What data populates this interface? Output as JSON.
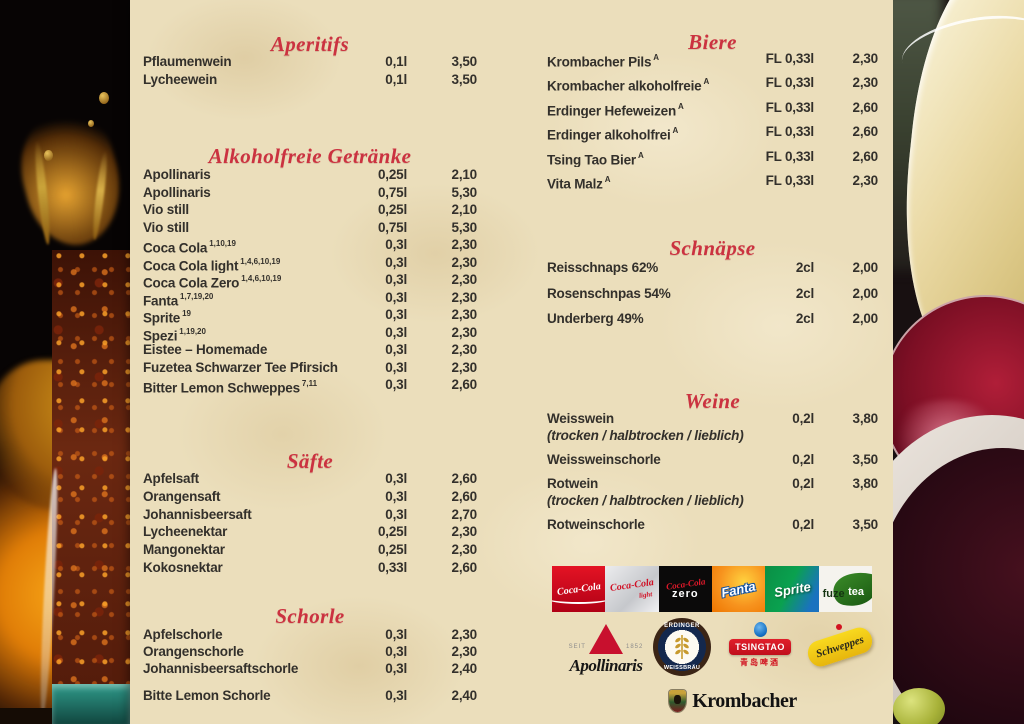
{
  "menu": {
    "columns": {
      "left": {
        "sections": [
          {
            "id": "aperitifs",
            "title": "Aperitifs",
            "items": [
              {
                "name": "Pflaumenwein",
                "vol": "0,1l",
                "price": "3,50"
              },
              {
                "name": "Lycheewein",
                "vol": "0,1l",
                "price": "3,50"
              }
            ]
          },
          {
            "id": "alkoholfreie-getraenke",
            "title": "Alkoholfreie Getränke",
            "items": [
              {
                "name": "Apollinaris",
                "vol": "0,25l",
                "price": "2,10"
              },
              {
                "name": "Apollinaris",
                "vol": "0,75l",
                "price": "5,30"
              },
              {
                "name": "Vio still",
                "vol": "0,25l",
                "price": "2,10"
              },
              {
                "name": "Vio still",
                "vol": "0,75l",
                "price": "5,30"
              },
              {
                "name": "Coca Cola",
                "sup": "1,10,19",
                "vol": "0,3l",
                "price": "2,30"
              },
              {
                "name": "Coca Cola light",
                "sup": "1,4,6,10,19",
                "vol": "0,3l",
                "price": "2,30"
              },
              {
                "name": "Coca Cola Zero",
                "sup": "1,4,6,10,19",
                "vol": "0,3l",
                "price": "2,30"
              },
              {
                "name": "Fanta",
                "sup": "1,7,19,20",
                "vol": "0,3l",
                "price": "2,30"
              },
              {
                "name": "Sprite",
                "sup": "19",
                "vol": "0,3l",
                "price": "2,30"
              },
              {
                "name": "Spezi",
                "sup": "1,19,20",
                "vol": "0,3l",
                "price": "2,30"
              },
              {
                "name": "Eistee – Homemade",
                "vol": "0,3l",
                "price": "2,30"
              },
              {
                "name": "Fuzetea Schwarzer Tee Pfirsich",
                "vol": "0,3l",
                "price": "2,30"
              },
              {
                "name": "Bitter Lemon Schweppes",
                "sup": "7,11",
                "vol": "0,3l",
                "price": "2,60"
              }
            ]
          },
          {
            "id": "saefte",
            "title": "Säfte",
            "items": [
              {
                "name": "Apfelsaft",
                "vol": "0,3l",
                "price": "2,60"
              },
              {
                "name": "Orangensaft",
                "vol": "0,3l",
                "price": "2,60"
              },
              {
                "name": "Johannisbeersaft",
                "vol": "0,3l",
                "price": "2,70"
              },
              {
                "name": "Lycheenektar",
                "vol": "0,25l",
                "price": "2,30"
              },
              {
                "name": "Mangonektar",
                "vol": "0,25l",
                "price": "2,30"
              },
              {
                "name": "Kokosnektar",
                "vol": "0,33l",
                "price": "2,60"
              }
            ]
          },
          {
            "id": "schorle",
            "title": "Schorle",
            "items": [
              {
                "name": "Apfelschorle",
                "vol": "0,3l",
                "price": "2,30"
              },
              {
                "name": "Orangenschorle",
                "vol": "0,3l",
                "price": "2,30"
              },
              {
                "name": "Johannisbeersaftschorle",
                "vol": "0,3l",
                "price": "2,40"
              },
              {
                "name": "Bitte Lemon Schorle",
                "vol": "0,3l",
                "price": "2,40",
                "gap": 11
              }
            ]
          }
        ]
      },
      "right": {
        "sections": [
          {
            "id": "biere",
            "title": "Biere",
            "items": [
              {
                "name": "Krombacher Pils",
                "sup": "A",
                "vol": "FL 0,33l",
                "price": "2,30"
              },
              {
                "name": "Krombacher alkoholfreie",
                "sup": "A",
                "vol": "FL 0,33l",
                "price": "2,30"
              },
              {
                "name": "Erdinger Hefeweizen",
                "sup": "A",
                "vol": "FL 0,33l",
                "price": "2,60"
              },
              {
                "name": "Erdinger alkoholfrei",
                "sup": "A",
                "vol": "FL 0,33l",
                "price": "2,60"
              },
              {
                "name": "Tsing Tao Bier",
                "sup": "A",
                "vol": "FL 0,33l",
                "price": "2,60"
              },
              {
                "name": "Vita Malz",
                "sup": "A",
                "vol": "FL 0,33l",
                "price": "2,30"
              }
            ]
          },
          {
            "id": "schnaepse",
            "title": "Schnäpse",
            "items": [
              {
                "name": "Reisschnaps 62%",
                "vol": "2cl",
                "price": "2,00"
              },
              {
                "name": "Rosenschnpas 54%",
                "vol": "2cl",
                "price": "2,00"
              },
              {
                "name": "Underberg 49%",
                "vol": "2cl",
                "price": "2,00"
              }
            ]
          },
          {
            "id": "weine",
            "title": "Weine",
            "items": [
              {
                "name": "Weisswein",
                "vol": "0,2l",
                "price": "3,80",
                "note": "(trocken / halbtrocken / lieblich)"
              },
              {
                "name": "Weissweinschorle",
                "vol": "0,2l",
                "price": "3,50"
              },
              {
                "name": "Rotwein",
                "vol": "0,2l",
                "price": "3,80",
                "note": "(trocken / halbtrocken / lieblich)"
              },
              {
                "name": "Rotweinschorle",
                "vol": "0,2l",
                "price": "3,50"
              }
            ]
          }
        ]
      }
    }
  },
  "logos": {
    "coca_cola": {
      "label": "Coca-Cola"
    },
    "coca_cola_light": {
      "label": "Coca-Cola",
      "sub": "light"
    },
    "coca_cola_zero": {
      "label": "Coca-Cola",
      "sub": "zero"
    },
    "fanta": {
      "label": "Fanta"
    },
    "sprite": {
      "label": "Sprite"
    },
    "fuzetea": {
      "label_a": "fuze",
      "label_b": "tea"
    },
    "apollinaris": {
      "seit": "SEIT",
      "year": "1852",
      "label": "Apollinaris"
    },
    "erdinger": {
      "top": "ERDINGER",
      "bottom": "WEISSBRÄU"
    },
    "tsingtao": {
      "label": "TSINGTAO",
      "chinese": "青岛啤酒"
    },
    "schweppes": {
      "label": "Schweppes"
    },
    "krombacher": {
      "label": "Krombacher"
    }
  },
  "colors": {
    "header_red": "#cb3240",
    "menu_bg": "#ebdebb",
    "text": "#33302b"
  }
}
